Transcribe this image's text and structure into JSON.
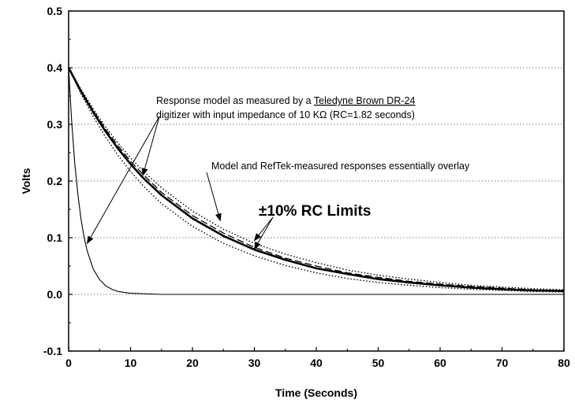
{
  "chart_data": {
    "type": "line",
    "title": "",
    "xlabel": "Time (Seconds)",
    "ylabel": "Volts",
    "xlim": [
      0,
      80
    ],
    "ylim": [
      -0.1,
      0.5
    ],
    "xticks": [
      "0",
      "10",
      "20",
      "30",
      "40",
      "50",
      "60",
      "70",
      "80"
    ],
    "yticks": [
      "-0.1",
      "0.0",
      "0.1",
      "0.2",
      "0.3",
      "0.4",
      "0.5"
    ],
    "grid": "horizontal dotted",
    "legend": "none",
    "series": [
      {
        "style": "solid-thin",
        "x": [
          0,
          0.5,
          1,
          1.5,
          2,
          2.5,
          3,
          4,
          5,
          6,
          7,
          8,
          10,
          15,
          20,
          40,
          60,
          80
        ],
        "y": [
          0.4,
          0.304,
          0.231,
          0.176,
          0.133,
          0.101,
          0.077,
          0.044,
          0.026,
          0.015,
          0.009,
          0.005,
          0.002,
          0.0,
          0.0,
          0.0,
          0.0,
          0.0
        ]
      },
      {
        "style": "solid-thick",
        "x": [
          0,
          2,
          4,
          6,
          8,
          10,
          12,
          15,
          20,
          25,
          30,
          35,
          40,
          45,
          50,
          55,
          60,
          65,
          70,
          75,
          80
        ],
        "y": [
          0.4,
          0.358,
          0.321,
          0.287,
          0.257,
          0.23,
          0.206,
          0.175,
          0.134,
          0.103,
          0.079,
          0.061,
          0.046,
          0.036,
          0.027,
          0.021,
          0.016,
          0.012,
          0.009,
          0.007,
          0.006
        ]
      },
      {
        "style": "dashed",
        "x": [
          0,
          2,
          4,
          6,
          8,
          10,
          12,
          15,
          20,
          25,
          30,
          35,
          40,
          45,
          50,
          55,
          60,
          65,
          70,
          75,
          80
        ],
        "y": [
          0.4,
          0.36,
          0.324,
          0.291,
          0.262,
          0.235,
          0.212,
          0.18,
          0.139,
          0.108,
          0.083,
          0.064,
          0.05,
          0.038,
          0.03,
          0.023,
          0.018,
          0.014,
          0.011,
          0.008,
          0.007
        ]
      },
      {
        "style": "dotted",
        "x": [
          0,
          2,
          4,
          6,
          8,
          10,
          12,
          15,
          20,
          25,
          30,
          35,
          40,
          45,
          50,
          55,
          60,
          65,
          70,
          75,
          80
        ],
        "y": [
          0.4,
          0.362,
          0.327,
          0.295,
          0.267,
          0.241,
          0.218,
          0.188,
          0.147,
          0.115,
          0.09,
          0.071,
          0.056,
          0.043,
          0.034,
          0.027,
          0.021,
          0.016,
          0.013,
          0.01,
          0.008
        ]
      },
      {
        "style": "dotted",
        "x": [
          0,
          2,
          4,
          6,
          8,
          10,
          12,
          15,
          20,
          25,
          30,
          35,
          40,
          45,
          50,
          55,
          60,
          65,
          70,
          75,
          80
        ],
        "y": [
          0.4,
          0.354,
          0.313,
          0.277,
          0.245,
          0.217,
          0.192,
          0.16,
          0.12,
          0.09,
          0.068,
          0.051,
          0.038,
          0.028,
          0.021,
          0.016,
          0.012,
          0.009,
          0.007,
          0.005,
          0.004
        ]
      }
    ],
    "annotations": [
      {
        "id": "dr24",
        "lines": [
          {
            "parts": [
              {
                "text": "Response model as measured by a "
              },
              {
                "text": "Teledyne Brown DR-24",
                "underline": true
              }
            ]
          },
          {
            "parts": [
              {
                "text": "digitizer with input impedance of 10 KΩ (RC=1.82 seconds)"
              }
            ]
          }
        ],
        "arrows_to": [
          [
            3,
            0.09
          ],
          [
            12,
            0.21
          ]
        ]
      },
      {
        "id": "overlay",
        "lines": [
          {
            "parts": [
              {
                "text": "Model and RefTek-measured responses essentially overlay"
              }
            ]
          }
        ],
        "arrows_to": [
          [
            24.5,
            0.13
          ]
        ]
      },
      {
        "id": "limits",
        "lines": [
          {
            "parts": [
              {
                "text": "±10% RC Limits"
              }
            ]
          }
        ],
        "arrows_to": [
          [
            30,
            0.095
          ],
          [
            30,
            0.08
          ]
        ]
      }
    ]
  }
}
